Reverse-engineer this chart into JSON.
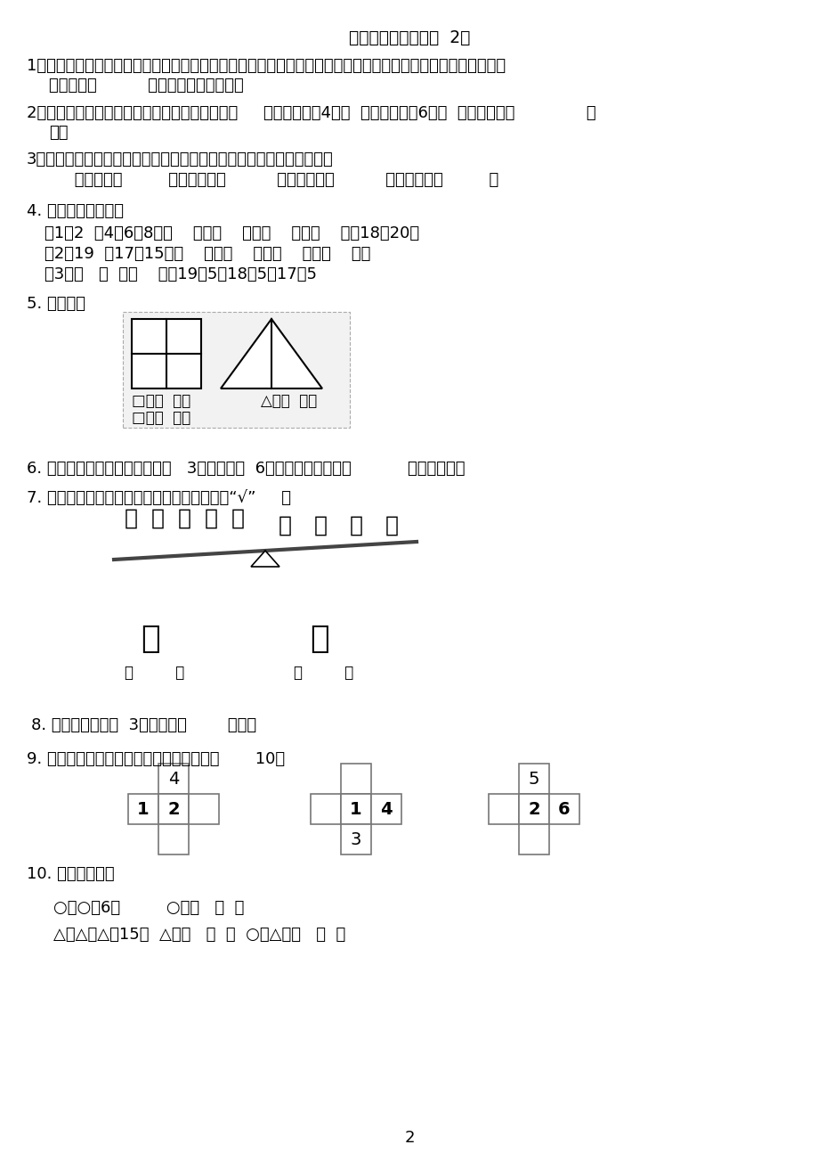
{
  "bg_color": "#ffffff",
  "title": "一年级数学趣味题（  2）",
  "q1_line1": "1、小猫、小狗、小兔、小猴、小熊排成一横排做广播操：兔的左边是狗；猴在熊的左边；猫的右边是狗；猴在兔",
  "q1_line2": "的右边。（          ）排在队伍的最左边。",
  "q2_line1": "2、拔河比赛结束后老师买了些饮料给同学们喇，     可乐比雪碧多4瓶，  可乐比芬达多6瓶。  老师买的是（              ）",
  "q2_line2": "多。",
  "q3_line1": "3、举行跳绳比赛。秋秋跳得比丁丁少，小牛跳得比阿婷多，比秋秋少。",
  "q3_line2": "     第一名：（         ）第二名：（          ）第三名：（          ）第四名：（         ）",
  "q4_header": "4. 找规律，填一填。",
  "q4_1": "（1）2  、4、6、8、（    ）、（    ）、（    ）、（    ）、18、20。",
  "q4_2": "（2）19  、17、15、（    ）、（    ）、（    ）、（    ）。",
  "q4_3": "（3）（   ）  、（    ）、19、5、18、5、17、5",
  "q5_header": "5. 数一数。",
  "q5_sq1": "□有（  ）个",
  "q5_sq2": "□有（  ）个",
  "q5_tri": "△有（  ）个",
  "q6_text": "6. 小朋友们排排坐，小红前面有   3人，后面有  6人，这一队一共有（           ）个小朋友。",
  "q7_text": "7. 一只小猴重还是一只小鹿重？在重的下面画“√”     。",
  "q8_text": "8. 把一条长绳剪成  3根，剪了（        ）次。",
  "q9_text": "9. 填上数，使横行、竖行的三个数相加都得       10。",
  "q10_header": "10. 图形代表几。",
  "q10_1": "○＋○＝6，         ○＝（   ）  ，",
  "q10_2": "△＋△＋△＝15，  △＝（   ）  ，  ○＋△＝（   ）  。",
  "page_num": "2"
}
